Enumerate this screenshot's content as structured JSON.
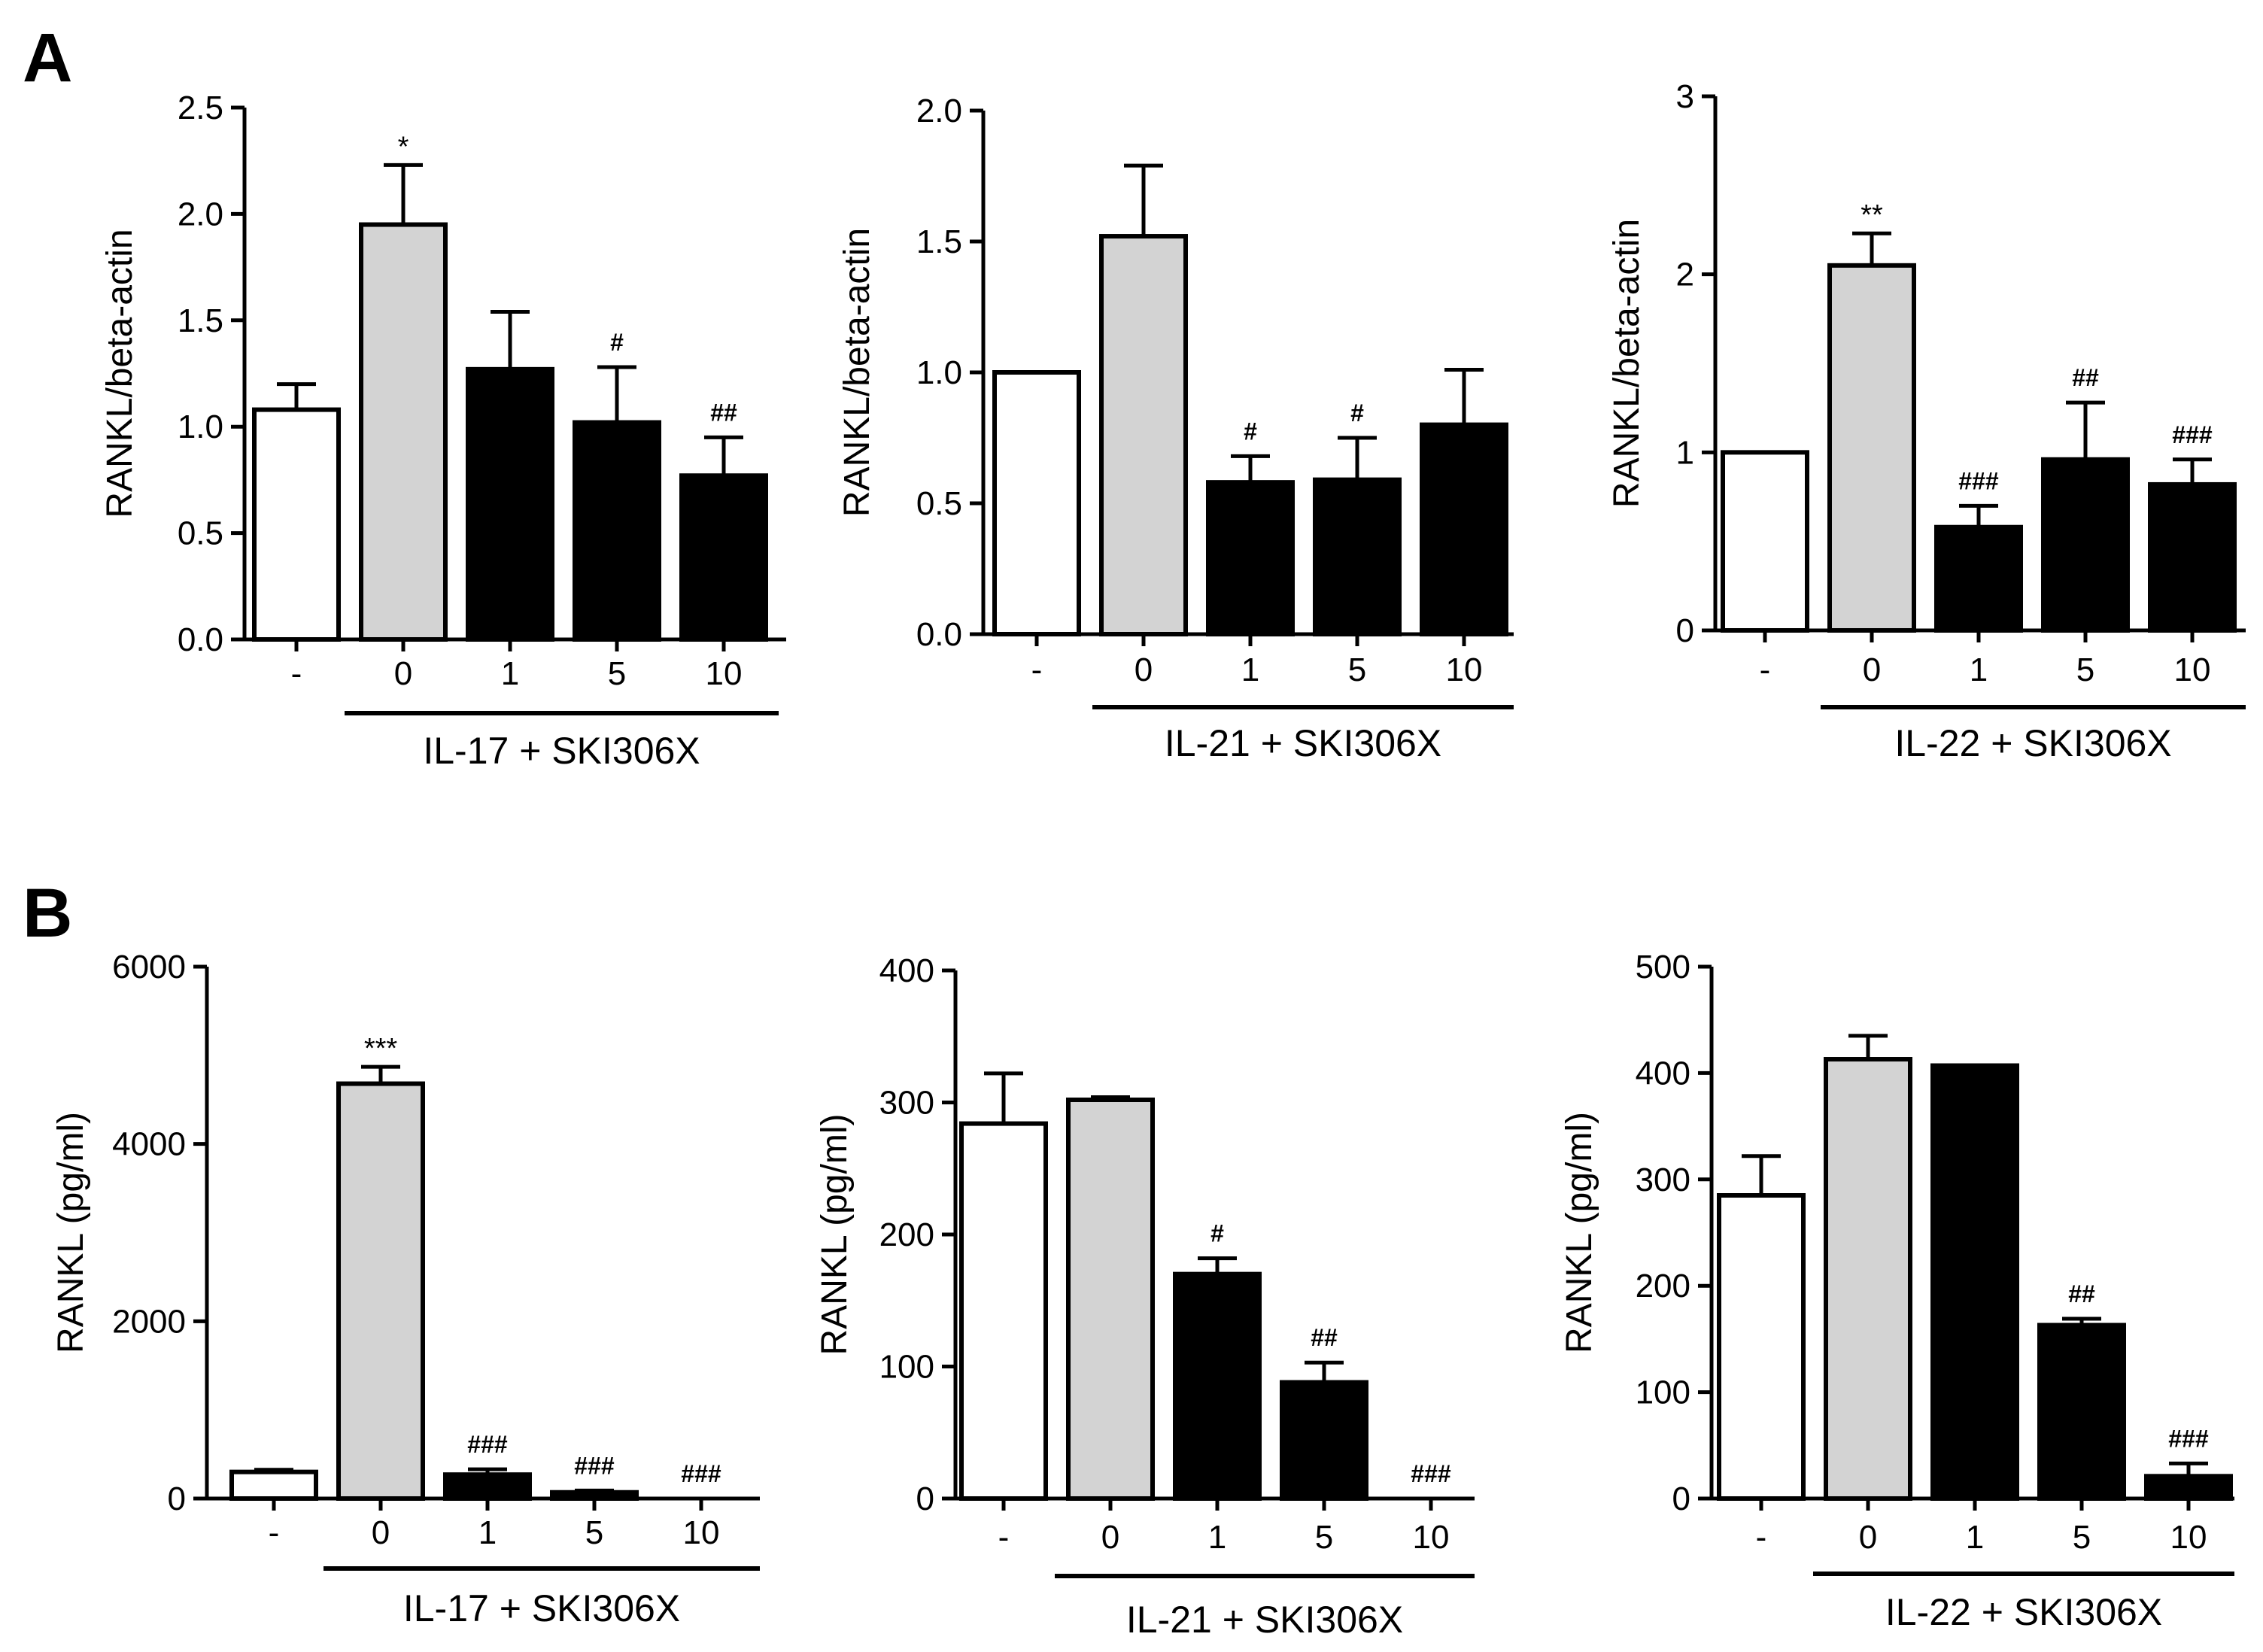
{
  "panels": [
    {
      "letter": "A"
    },
    {
      "letter": "B"
    }
  ],
  "chart_data": [
    {
      "type": "bar",
      "panel": "A",
      "categories": [
        "-",
        "0",
        "1",
        "5",
        "10"
      ],
      "values": [
        1.08,
        1.95,
        1.27,
        1.02,
        0.77
      ],
      "errors": [
        0.12,
        0.28,
        0.27,
        0.26,
        0.18
      ],
      "bar_fills": [
        "#ffffff",
        "#d3d3d3",
        "#000000",
        "#000000",
        "#000000"
      ],
      "significance": [
        "",
        "*",
        "",
        "#",
        "##"
      ],
      "ylabel": "RANKL/beta-actin",
      "yticks": [
        0,
        0.5,
        1,
        1.5,
        2,
        2.5
      ],
      "ytick_labels": [
        "0.0",
        "0.5",
        "1.0",
        "1.5",
        "2.0",
        "2.5"
      ],
      "ylim": [
        0,
        2.5
      ],
      "group_label": "IL-17 + SKI306X"
    },
    {
      "type": "bar",
      "panel": "A",
      "categories": [
        "-",
        "0",
        "1",
        "5",
        "10"
      ],
      "values": [
        1.0,
        1.52,
        0.58,
        0.59,
        0.8
      ],
      "errors": [
        0.0,
        0.27,
        0.1,
        0.16,
        0.21
      ],
      "bar_fills": [
        "#ffffff",
        "#d3d3d3",
        "#000000",
        "#000000",
        "#000000"
      ],
      "significance": [
        "",
        "",
        "#",
        "#",
        ""
      ],
      "ylabel": "RANKL/beta-actin",
      "yticks": [
        0,
        0.5,
        1,
        1.5,
        2
      ],
      "ytick_labels": [
        "0.0",
        "0.5",
        "1.0",
        "1.5",
        "2.0"
      ],
      "ylim": [
        0,
        2.0
      ],
      "group_label": "IL-21 + SKI306X"
    },
    {
      "type": "bar",
      "panel": "A",
      "categories": [
        "-",
        "0",
        "1",
        "5",
        "10"
      ],
      "values": [
        1.0,
        2.05,
        0.58,
        0.96,
        0.82
      ],
      "errors": [
        0.0,
        0.18,
        0.12,
        0.32,
        0.14
      ],
      "bar_fills": [
        "#ffffff",
        "#d3d3d3",
        "#000000",
        "#000000",
        "#000000"
      ],
      "significance": [
        "",
        "**",
        "###",
        "##",
        "###"
      ],
      "ylabel": "RANKL/beta-actin",
      "yticks": [
        0,
        1,
        2,
        3
      ],
      "ytick_labels": [
        "0",
        "1",
        "2",
        "3"
      ],
      "ylim": [
        0,
        3
      ],
      "group_label": "IL-22 + SKI306X"
    },
    {
      "type": "bar",
      "panel": "B",
      "categories": [
        "-",
        "0",
        "1",
        "5",
        "10"
      ],
      "values": [
        300,
        4680,
        270,
        70,
        0
      ],
      "errors": [
        25,
        190,
        60,
        20,
        0
      ],
      "bar_fills": [
        "#ffffff",
        "#d3d3d3",
        "#000000",
        "#000000",
        "#000000"
      ],
      "significance": [
        "",
        "***",
        "###",
        "###",
        "###"
      ],
      "ylabel": "RANKL (pg/ml)",
      "yticks": [
        0,
        2000,
        4000,
        6000
      ],
      "ytick_labels": [
        "0",
        "2000",
        "4000",
        "6000"
      ],
      "ylim": [
        0,
        6000
      ],
      "group_label": "IL-17 + SKI306X"
    },
    {
      "type": "bar",
      "panel": "B",
      "categories": [
        "-",
        "0",
        "1",
        "5",
        "10"
      ],
      "values": [
        284,
        302,
        170,
        88,
        0
      ],
      "errors": [
        38,
        2,
        12,
        15,
        0
      ],
      "bar_fills": [
        "#ffffff",
        "#d3d3d3",
        "#000000",
        "#000000",
        "#000000"
      ],
      "significance": [
        "",
        "",
        "#",
        "##",
        "###"
      ],
      "ylabel": "RANKL (pg/ml)",
      "yticks": [
        0,
        100,
        200,
        300,
        400
      ],
      "ytick_labels": [
        "0",
        "100",
        "200",
        "300",
        "400"
      ],
      "ylim": [
        0,
        400
      ],
      "group_label": "IL-21 + SKI306X"
    },
    {
      "type": "bar",
      "panel": "B",
      "categories": [
        "-",
        "0",
        "1",
        "5",
        "10"
      ],
      "values": [
        285,
        413,
        407,
        163,
        21
      ],
      "errors": [
        37,
        22,
        0,
        6,
        12
      ],
      "bar_fills": [
        "#ffffff",
        "#d3d3d3",
        "#000000",
        "#000000",
        "#000000"
      ],
      "significance": [
        "",
        "",
        "",
        "##",
        "###"
      ],
      "ylabel": "RANKL (pg/ml)",
      "yticks": [
        0,
        100,
        200,
        300,
        400,
        500
      ],
      "ytick_labels": [
        "0",
        "100",
        "200",
        "300",
        "400",
        "500"
      ],
      "ylim": [
        0,
        500
      ],
      "group_label": "IL-22 + SKI306X"
    }
  ]
}
